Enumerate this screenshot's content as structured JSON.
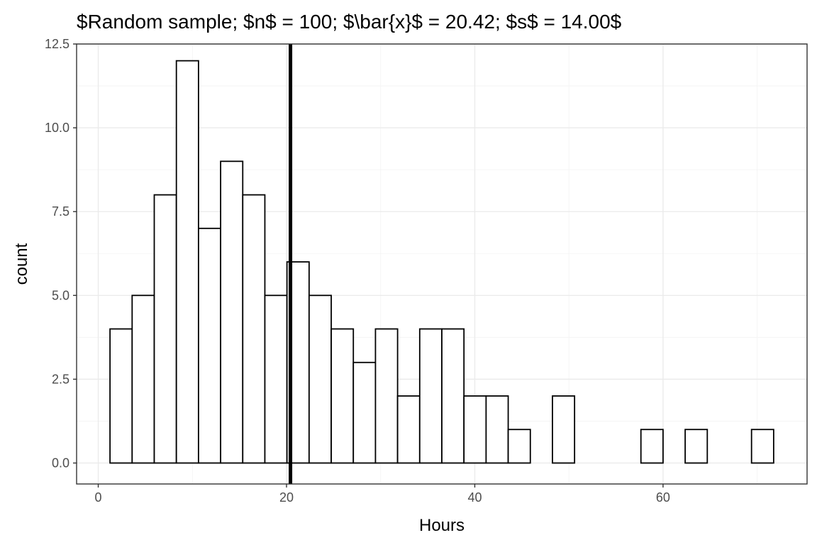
{
  "chart_data": {
    "type": "bar",
    "subtype": "histogram",
    "title": "$Random sample; $n$ = 100; $\\bar{x}$ = 20.42; $s$ = 14.00$",
    "xlabel": "Hours",
    "ylabel": "count",
    "xlim": [
      -2.3,
      75.3
    ],
    "ylim": [
      -0.625,
      12.5
    ],
    "xticks": [
      0,
      20,
      40,
      60
    ],
    "xtick_labels": [
      "0",
      "20",
      "40",
      "60"
    ],
    "yticks": [
      0,
      2.5,
      5,
      7.5,
      10,
      12.5
    ],
    "ytick_labels": [
      "0.0",
      "2.5",
      "5.0",
      "7.5",
      "10.0",
      "12.5"
    ],
    "bin_width": 2.35,
    "bins": [
      {
        "x0": 1.25,
        "x1": 3.6,
        "count": 4
      },
      {
        "x0": 3.6,
        "x1": 5.95,
        "count": 5
      },
      {
        "x0": 5.95,
        "x1": 8.3,
        "count": 8
      },
      {
        "x0": 8.3,
        "x1": 10.65,
        "count": 12
      },
      {
        "x0": 10.65,
        "x1": 13.0,
        "count": 7
      },
      {
        "x0": 13.0,
        "x1": 15.35,
        "count": 9
      },
      {
        "x0": 15.35,
        "x1": 17.7,
        "count": 8
      },
      {
        "x0": 17.7,
        "x1": 20.05,
        "count": 5
      },
      {
        "x0": 20.05,
        "x1": 22.4,
        "count": 6
      },
      {
        "x0": 22.4,
        "x1": 24.75,
        "count": 5
      },
      {
        "x0": 24.75,
        "x1": 27.1,
        "count": 4
      },
      {
        "x0": 27.1,
        "x1": 29.45,
        "count": 3
      },
      {
        "x0": 29.45,
        "x1": 31.8,
        "count": 4
      },
      {
        "x0": 31.8,
        "x1": 34.15,
        "count": 2
      },
      {
        "x0": 34.15,
        "x1": 36.5,
        "count": 4
      },
      {
        "x0": 36.5,
        "x1": 38.85,
        "count": 4
      },
      {
        "x0": 38.85,
        "x1": 41.2,
        "count": 2
      },
      {
        "x0": 41.2,
        "x1": 43.55,
        "count": 2
      },
      {
        "x0": 43.55,
        "x1": 45.9,
        "count": 1
      },
      {
        "x0": 45.9,
        "x1": 48.25,
        "count": 0
      },
      {
        "x0": 48.25,
        "x1": 50.6,
        "count": 2
      },
      {
        "x0": 50.6,
        "x1": 52.95,
        "count": 0
      },
      {
        "x0": 52.95,
        "x1": 55.3,
        "count": 0
      },
      {
        "x0": 55.3,
        "x1": 57.65,
        "count": 0
      },
      {
        "x0": 57.65,
        "x1": 60.0,
        "count": 1
      },
      {
        "x0": 60.0,
        "x1": 62.35,
        "count": 0
      },
      {
        "x0": 62.35,
        "x1": 64.7,
        "count": 1
      },
      {
        "x0": 64.7,
        "x1": 67.05,
        "count": 0
      },
      {
        "x0": 67.05,
        "x1": 69.4,
        "count": 0
      },
      {
        "x0": 69.4,
        "x1": 71.75,
        "count": 1
      }
    ],
    "mean_line": {
      "x": 20.42
    },
    "grid": true,
    "legend": "none",
    "colors": {
      "bar_fill": "#ffffff",
      "bar_stroke": "#000000",
      "mean_line": "#000000"
    }
  }
}
